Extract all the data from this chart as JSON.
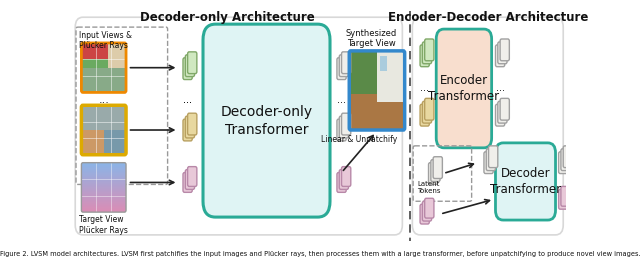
{
  "title_left": "Decoder-only Architecture",
  "title_right": "Encoder-Decoder Architecture",
  "caption": "Figure 2. LVSM model architectures. LVSM first patchifies the input images and Plücker rays, then processes them with a large transformer, before unpatchifying to produce novel view images.",
  "colors": {
    "cyan_box": "#dff4f4",
    "cyan_border": "#2aaa96",
    "peach_box": "#f8dece",
    "peach_border": "#2aaa96",
    "token_yellow": "#e8d8a0",
    "token_yellow_border": "#b8a060",
    "token_green": "#d0e8c0",
    "token_green_border": "#80a868",
    "token_pink": "#e8c8d8",
    "token_pink_border": "#b888a8",
    "token_white": "#f0efeb",
    "token_white_border": "#a0a0a0",
    "image_border_blue": "#3388cc",
    "image_border_yellow": "#ddaa00",
    "dashed_border": "#999999",
    "divider": "#444444",
    "text_dark": "#111111",
    "arrow": "#222222",
    "outer_box_left": "#d8d8d8",
    "outer_box_right": "#d8d8d8"
  },
  "background": "#ffffff"
}
